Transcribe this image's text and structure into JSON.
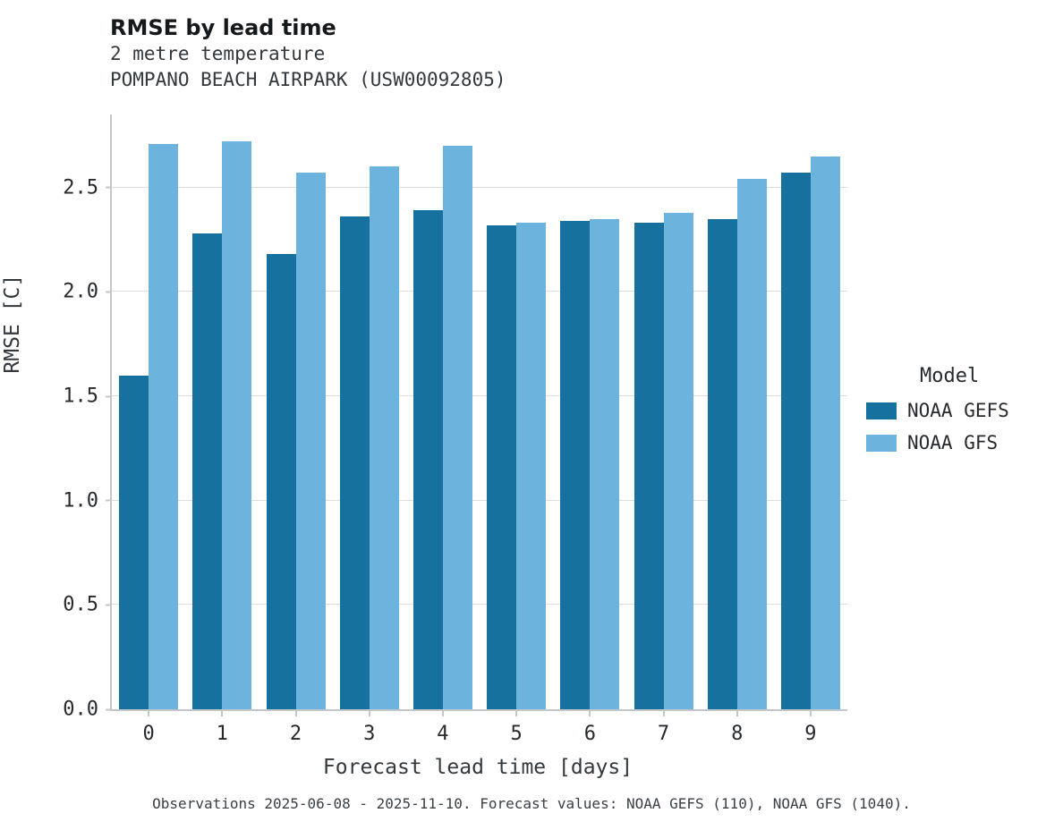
{
  "header": {
    "title": "RMSE by lead time",
    "subtitle_line1": "2 metre temperature",
    "subtitle_line2": "POMPANO BEACH AIRPARK (USW00092805)"
  },
  "chart_data": {
    "type": "bar",
    "title": "RMSE by lead time",
    "subtitle": [
      "2 metre temperature",
      "POMPANO BEACH AIRPARK (USW00092805)"
    ],
    "categories": [
      "0",
      "1",
      "2",
      "3",
      "4",
      "5",
      "6",
      "7",
      "8",
      "9"
    ],
    "series": [
      {
        "name": "NOAA GEFS",
        "color": "#17719f",
        "values": [
          1.6,
          2.28,
          2.18,
          2.36,
          2.39,
          2.32,
          2.34,
          2.33,
          2.35,
          2.57
        ]
      },
      {
        "name": "NOAA GFS",
        "color": "#6cb3de",
        "values": [
          2.71,
          2.72,
          2.57,
          2.6,
          2.7,
          2.33,
          2.35,
          2.38,
          2.54,
          2.65
        ]
      }
    ],
    "xlabel": "Forecast lead time [days]",
    "ylabel": "RMSE [C]",
    "ylim": [
      0,
      2.85
    ],
    "yticks": [
      0.0,
      0.5,
      1.0,
      1.5,
      2.0,
      2.5
    ],
    "grid": true,
    "legend_title": "Model",
    "legend_position": "right"
  },
  "legend": {
    "title": "Model",
    "items": [
      {
        "label": "NOAA GEFS",
        "color": "#17719f"
      },
      {
        "label": "NOAA GFS",
        "color": "#6cb3de"
      }
    ]
  },
  "axes": {
    "xlabel": "Forecast lead time [days]",
    "ylabel": "RMSE [C]"
  },
  "footer": {
    "caption": "Observations 2025-06-08 - 2025-11-10. Forecast values: NOAA GEFS (110), NOAA GFS (1040)."
  }
}
